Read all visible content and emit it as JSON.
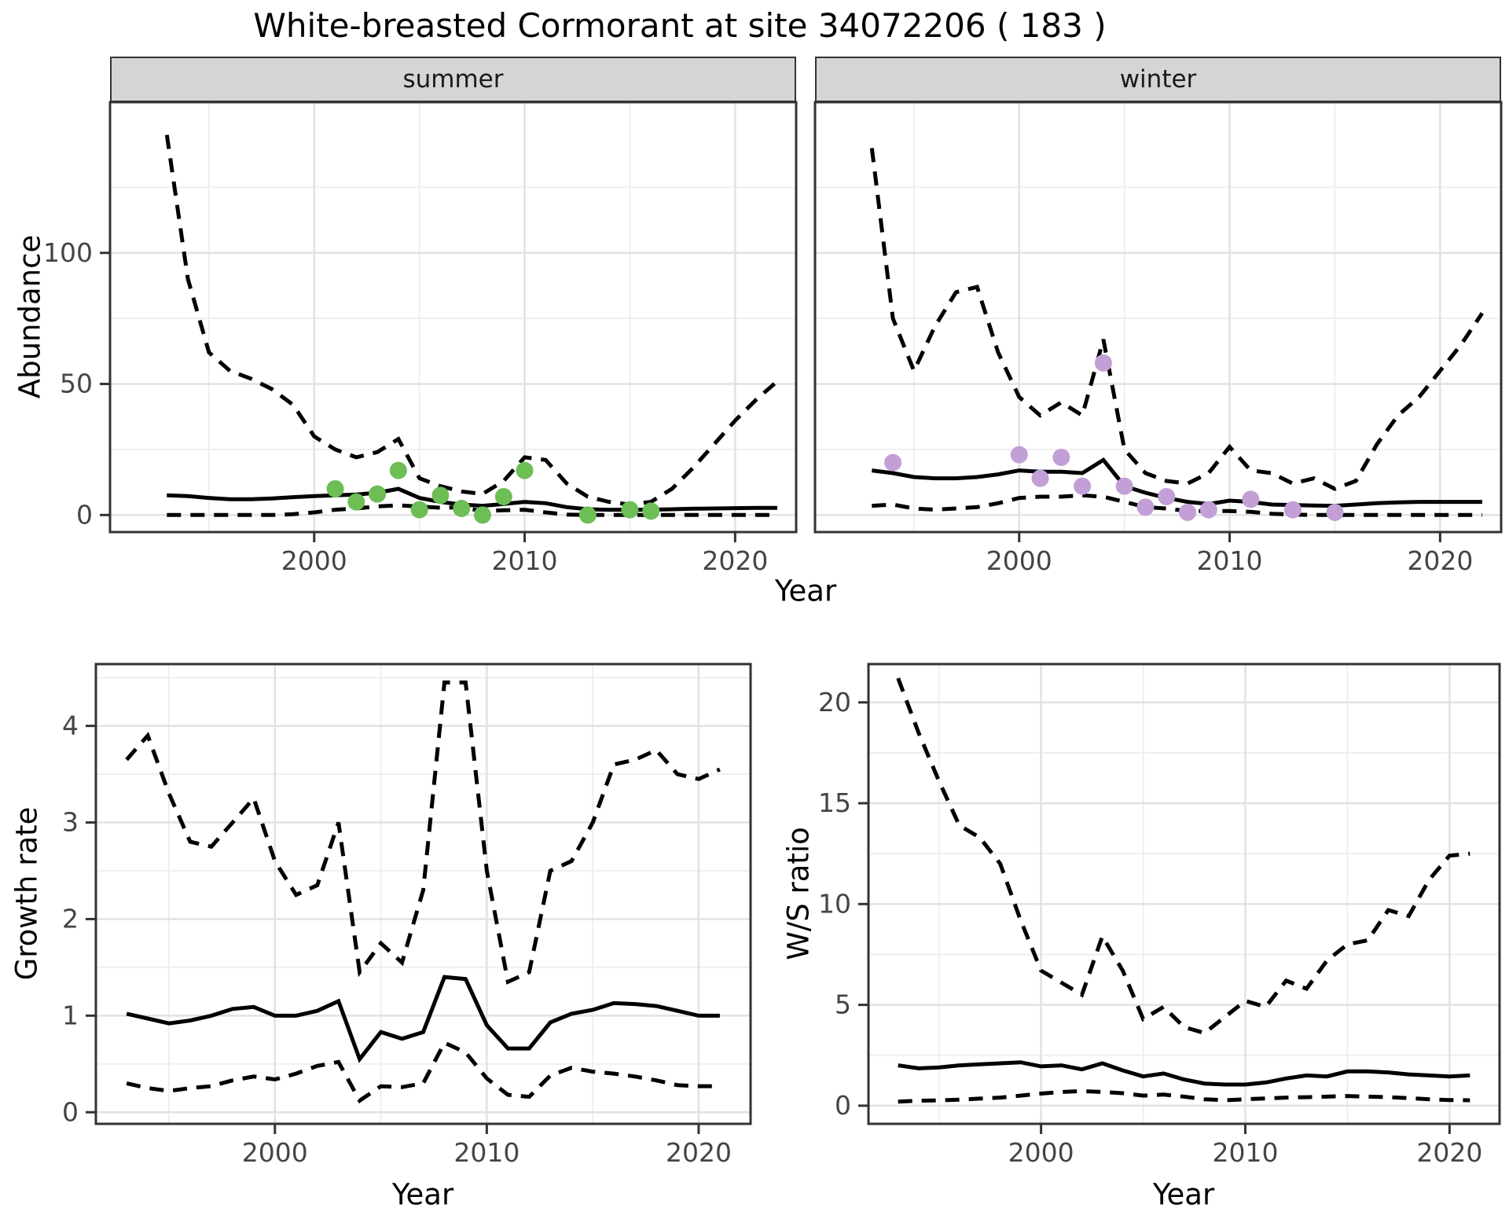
{
  "title": "White-breasted Cormorant at site 34072206 ( 183 )",
  "facets": [
    {
      "label": "summer"
    },
    {
      "label": "winter"
    }
  ],
  "axis_titles": {
    "abundance": "Abundance",
    "growth_rate": "Growth rate",
    "ws_ratio": "W/S ratio",
    "year_top": "Year",
    "year_bottom_left": "Year",
    "year_bottom_right": "Year"
  },
  "colors": {
    "summer_point": "#6cbe55",
    "winter_point": "#c29fd6",
    "line": "#000000",
    "strip_bg": "#d5d5d5",
    "panel_border": "#333333",
    "grid_major": "#e2e2e2",
    "grid_minor": "#efefef",
    "tick_text": "#444444"
  },
  "chart_data": [
    {
      "id": "abundance-summer",
      "type": "line",
      "facet": "summer",
      "ylabel": "Abundance",
      "xlabel": "Year",
      "xlim": [
        1990.3,
        2022.9
      ],
      "ylim": [
        -6.5,
        157.5
      ],
      "x_ticks": [
        2000,
        2010,
        2020
      ],
      "x_minor": [
        1995,
        2005,
        2015
      ],
      "y_ticks": [
        0,
        50,
        100
      ],
      "y_minor": [
        25,
        75,
        125
      ],
      "x": [
        1993,
        1994,
        1995,
        1996,
        1997,
        1998,
        1999,
        2000,
        2001,
        2002,
        2003,
        2004,
        2005,
        2006,
        2007,
        2008,
        2009,
        2010,
        2011,
        2012,
        2013,
        2014,
        2015,
        2016,
        2017,
        2018,
        2019,
        2020,
        2021,
        2022
      ],
      "series": [
        {
          "name": "upper-ci",
          "style": "dashed",
          "y": [
            145,
            90,
            62,
            55,
            52,
            48,
            42,
            30,
            25,
            22,
            24,
            29,
            14,
            11,
            9,
            8,
            13,
            22,
            21,
            12,
            7,
            5,
            4,
            5,
            10,
            18,
            27,
            36,
            44,
            51
          ]
        },
        {
          "name": "median",
          "style": "solid",
          "y": [
            7.5,
            7.2,
            6.5,
            6,
            6,
            6.3,
            6.8,
            7.2,
            7.5,
            7.8,
            8.5,
            10,
            6.5,
            5,
            4,
            3.5,
            4.2,
            5,
            4.5,
            3,
            2.2,
            2,
            2,
            2,
            2.2,
            2.4,
            2.5,
            2.6,
            2.7,
            2.7
          ]
        },
        {
          "name": "lower-ci",
          "style": "dashed",
          "y": [
            0,
            0,
            0,
            0,
            0,
            0,
            0.3,
            1,
            2,
            2.5,
            3.3,
            3.7,
            3.2,
            2.8,
            2.9,
            1.5,
            1.8,
            2,
            1,
            0.2,
            0,
            0,
            0,
            0,
            0,
            0,
            0,
            0,
            0,
            0
          ]
        }
      ],
      "points": {
        "name": "observed-counts",
        "color_key": "summer_point",
        "x": [
          2001,
          2002,
          2003,
          2004,
          2005,
          2006,
          2007,
          2008,
          2009,
          2010,
          2013,
          2015,
          2016
        ],
        "y": [
          10,
          5,
          8,
          17,
          2,
          7.5,
          2.5,
          0,
          7,
          17,
          0,
          2,
          1.5
        ]
      }
    },
    {
      "id": "abundance-winter",
      "type": "line",
      "facet": "winter",
      "ylabel": "Abundance",
      "xlabel": "Year",
      "xlim": [
        1990.3,
        2022.9
      ],
      "ylim": [
        -6.5,
        157.5
      ],
      "x_ticks": [
        2000,
        2010,
        2020
      ],
      "x_minor": [
        1995,
        2005,
        2015
      ],
      "y_ticks": [
        0,
        50,
        100
      ],
      "y_minor": [
        25,
        75,
        125
      ],
      "x": [
        1993,
        1994,
        1995,
        1996,
        1997,
        1998,
        1999,
        2000,
        2001,
        2002,
        2003,
        2004,
        2005,
        2006,
        2007,
        2008,
        2009,
        2010,
        2011,
        2012,
        2013,
        2014,
        2015,
        2016,
        2017,
        2018,
        2019,
        2020,
        2021,
        2022
      ],
      "series": [
        {
          "name": "upper-ci",
          "style": "dashed",
          "y": [
            140,
            75,
            55,
            72,
            85,
            87,
            62,
            45,
            38,
            43,
            38,
            67,
            25,
            16,
            13,
            12,
            16,
            26,
            17,
            16,
            12,
            14,
            10,
            13,
            27,
            38,
            45,
            55,
            65,
            77
          ]
        },
        {
          "name": "median",
          "style": "solid",
          "y": [
            17,
            16,
            14.5,
            14,
            14,
            14.5,
            15.5,
            17,
            16.5,
            16.5,
            16,
            21,
            11,
            8.5,
            6.5,
            5,
            4.2,
            5.5,
            5,
            4,
            3.8,
            3.6,
            3.5,
            4,
            4.5,
            4.8,
            5,
            5,
            5,
            5
          ]
        },
        {
          "name": "lower-ci",
          "style": "dashed",
          "y": [
            3.5,
            4,
            2.5,
            2,
            2.5,
            3,
            4.5,
            6.5,
            7,
            7,
            7.5,
            7,
            5,
            3,
            2.5,
            1.5,
            1.5,
            1.5,
            1.2,
            0.5,
            0.2,
            0,
            0,
            0,
            0,
            0,
            0,
            0,
            0,
            0
          ]
        }
      ],
      "points": {
        "name": "observed-counts",
        "color_key": "winter_point",
        "x": [
          1994,
          2000,
          2001,
          2002,
          2003,
          2004,
          2005,
          2006,
          2007,
          2008,
          2009,
          2011,
          2013,
          2015
        ],
        "y": [
          20,
          23,
          14,
          22,
          11,
          58,
          11,
          3,
          7,
          1,
          2,
          6,
          2,
          1
        ]
      }
    },
    {
      "id": "growth-rate",
      "type": "line",
      "facet": null,
      "ylabel": "Growth rate",
      "xlabel": "Year",
      "xlim": [
        1991.55,
        2022.45
      ],
      "ylim": [
        -0.12,
        4.64
      ],
      "x_ticks": [
        2000,
        2010,
        2020
      ],
      "x_minor": [
        1995,
        2005,
        2015
      ],
      "y_ticks": [
        0,
        1,
        2,
        3,
        4
      ],
      "y_minor": [
        0.5,
        1.5,
        2.5,
        3.5,
        4.5
      ],
      "x": [
        1993,
        1994,
        1995,
        1996,
        1997,
        1998,
        1999,
        2000,
        2001,
        2002,
        2003,
        2004,
        2005,
        2006,
        2007,
        2008,
        2009,
        2010,
        2011,
        2012,
        2013,
        2014,
        2015,
        2016,
        2017,
        2018,
        2019,
        2020,
        2021
      ],
      "series": [
        {
          "name": "upper-ci",
          "style": "dashed",
          "y": [
            3.65,
            3.9,
            3.3,
            2.8,
            2.75,
            3.0,
            3.25,
            2.6,
            2.25,
            2.35,
            3.0,
            1.45,
            1.75,
            1.55,
            2.3,
            4.45,
            4.45,
            2.5,
            1.35,
            1.45,
            2.5,
            2.6,
            3.0,
            3.6,
            3.65,
            3.75,
            3.5,
            3.45,
            3.55
          ]
        },
        {
          "name": "median",
          "style": "solid",
          "y": [
            1.02,
            0.97,
            0.92,
            0.95,
            1.0,
            1.07,
            1.09,
            1.0,
            1.0,
            1.05,
            1.15,
            0.55,
            0.83,
            0.76,
            0.83,
            1.4,
            1.38,
            0.9,
            0.66,
            0.66,
            0.93,
            1.02,
            1.06,
            1.13,
            1.12,
            1.1,
            1.05,
            1.0,
            1.0
          ]
        },
        {
          "name": "lower-ci",
          "style": "dashed",
          "y": [
            0.3,
            0.25,
            0.22,
            0.25,
            0.27,
            0.33,
            0.37,
            0.34,
            0.4,
            0.48,
            0.52,
            0.12,
            0.27,
            0.26,
            0.3,
            0.72,
            0.62,
            0.35,
            0.18,
            0.16,
            0.38,
            0.46,
            0.42,
            0.4,
            0.37,
            0.33,
            0.28,
            0.27,
            0.27
          ]
        }
      ],
      "points": null
    },
    {
      "id": "ws-ratio",
      "type": "line",
      "facet": null,
      "ylabel": "W/S ratio",
      "xlabel": "Year",
      "xlim": [
        1991.55,
        2022.45
      ],
      "ylim": [
        -0.9,
        21.9
      ],
      "x_ticks": [
        2000,
        2010,
        2020
      ],
      "x_minor": [
        1995,
        2005,
        2015
      ],
      "y_ticks": [
        0,
        5,
        10,
        15,
        20
      ],
      "y_minor": [
        2.5,
        7.5,
        12.5,
        17.5
      ],
      "x": [
        1993,
        1994,
        1995,
        1996,
        1997,
        1998,
        1999,
        2000,
        2001,
        2002,
        2003,
        2004,
        2005,
        2006,
        2007,
        2008,
        2009,
        2010,
        2011,
        2012,
        2013,
        2014,
        2015,
        2016,
        2017,
        2018,
        2019,
        2020,
        2021
      ],
      "series": [
        {
          "name": "upper-ci",
          "style": "dashed",
          "y": [
            21.2,
            18.5,
            16.1,
            13.9,
            13.3,
            12.0,
            9.2,
            6.7,
            6.1,
            5.5,
            8.4,
            6.7,
            4.3,
            4.9,
            3.9,
            3.6,
            4.4,
            5.2,
            4.9,
            6.2,
            5.8,
            7.2,
            8.0,
            8.2,
            9.7,
            9.4,
            11.2,
            12.4,
            12.5
          ]
        },
        {
          "name": "median",
          "style": "solid",
          "y": [
            2.0,
            1.85,
            1.9,
            2.0,
            2.05,
            2.1,
            2.15,
            1.95,
            2.0,
            1.8,
            2.1,
            1.75,
            1.45,
            1.6,
            1.3,
            1.1,
            1.05,
            1.05,
            1.15,
            1.35,
            1.5,
            1.45,
            1.7,
            1.7,
            1.65,
            1.55,
            1.5,
            1.45,
            1.5
          ]
        },
        {
          "name": "lower-ci",
          "style": "dashed",
          "y": [
            0.2,
            0.25,
            0.26,
            0.3,
            0.35,
            0.4,
            0.5,
            0.6,
            0.68,
            0.72,
            0.68,
            0.62,
            0.5,
            0.55,
            0.45,
            0.32,
            0.27,
            0.32,
            0.36,
            0.4,
            0.42,
            0.45,
            0.48,
            0.45,
            0.42,
            0.38,
            0.32,
            0.28,
            0.27
          ]
        }
      ],
      "points": null
    }
  ]
}
